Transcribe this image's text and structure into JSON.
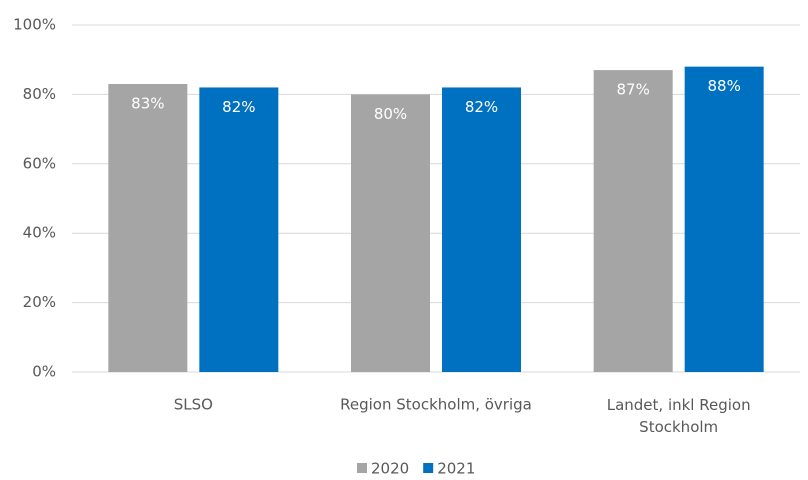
{
  "chart_data": {
    "type": "bar",
    "categories": [
      "SLSO",
      "Region Stockholm, övriga",
      "Landet, inkl Region Stockholm"
    ],
    "series": [
      {
        "name": "2020",
        "color": "#a5a5a5",
        "values": [
          83,
          80,
          87
        ],
        "value_labels": [
          "83%",
          "80%",
          "87%"
        ]
      },
      {
        "name": "2021",
        "color": "#0070c0",
        "values": [
          82,
          82,
          88
        ],
        "value_labels": [
          "82%",
          "82%",
          "88%"
        ]
      }
    ],
    "ylim": [
      0,
      100
    ],
    "yticks": [
      {
        "value": 0,
        "label": "0%"
      },
      {
        "value": 20,
        "label": "20%"
      },
      {
        "value": 40,
        "label": "40%"
      },
      {
        "value": 60,
        "label": "60%"
      },
      {
        "value": 80,
        "label": "80%"
      },
      {
        "value": 100,
        "label": "100%"
      }
    ],
    "grid": true,
    "legend": "bottom"
  }
}
